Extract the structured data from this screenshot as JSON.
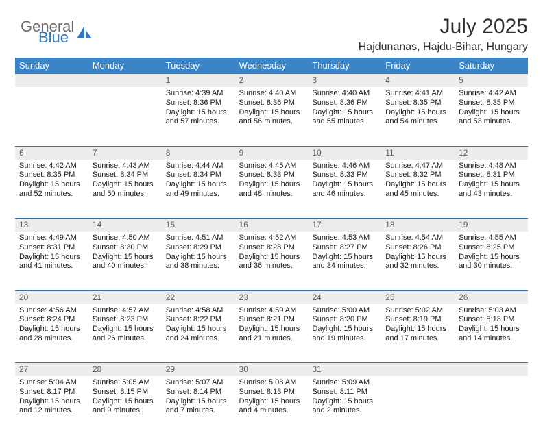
{
  "brand": {
    "general": "General",
    "blue": "Blue"
  },
  "title": "July 2025",
  "location": "Hajdunanas, Hajdu-Bihar, Hungary",
  "colors": {
    "header_bg": "#3b84c8",
    "header_text": "#ffffff",
    "daynum_bg": "#ededed",
    "row_divider": "#3b6fa0",
    "body_text": "#1a1a1a",
    "logo_gray": "#6b6b6b",
    "logo_blue": "#2f78c2"
  },
  "weekdays": [
    "Sunday",
    "Monday",
    "Tuesday",
    "Wednesday",
    "Thursday",
    "Friday",
    "Saturday"
  ],
  "weeks": [
    [
      null,
      null,
      {
        "n": "1",
        "sr": "4:39 AM",
        "ss": "8:36 PM",
        "dl": "15 hours and 57 minutes."
      },
      {
        "n": "2",
        "sr": "4:40 AM",
        "ss": "8:36 PM",
        "dl": "15 hours and 56 minutes."
      },
      {
        "n": "3",
        "sr": "4:40 AM",
        "ss": "8:36 PM",
        "dl": "15 hours and 55 minutes."
      },
      {
        "n": "4",
        "sr": "4:41 AM",
        "ss": "8:35 PM",
        "dl": "15 hours and 54 minutes."
      },
      {
        "n": "5",
        "sr": "4:42 AM",
        "ss": "8:35 PM",
        "dl": "15 hours and 53 minutes."
      }
    ],
    [
      {
        "n": "6",
        "sr": "4:42 AM",
        "ss": "8:35 PM",
        "dl": "15 hours and 52 minutes."
      },
      {
        "n": "7",
        "sr": "4:43 AM",
        "ss": "8:34 PM",
        "dl": "15 hours and 50 minutes."
      },
      {
        "n": "8",
        "sr": "4:44 AM",
        "ss": "8:34 PM",
        "dl": "15 hours and 49 minutes."
      },
      {
        "n": "9",
        "sr": "4:45 AM",
        "ss": "8:33 PM",
        "dl": "15 hours and 48 minutes."
      },
      {
        "n": "10",
        "sr": "4:46 AM",
        "ss": "8:33 PM",
        "dl": "15 hours and 46 minutes."
      },
      {
        "n": "11",
        "sr": "4:47 AM",
        "ss": "8:32 PM",
        "dl": "15 hours and 45 minutes."
      },
      {
        "n": "12",
        "sr": "4:48 AM",
        "ss": "8:31 PM",
        "dl": "15 hours and 43 minutes."
      }
    ],
    [
      {
        "n": "13",
        "sr": "4:49 AM",
        "ss": "8:31 PM",
        "dl": "15 hours and 41 minutes."
      },
      {
        "n": "14",
        "sr": "4:50 AM",
        "ss": "8:30 PM",
        "dl": "15 hours and 40 minutes."
      },
      {
        "n": "15",
        "sr": "4:51 AM",
        "ss": "8:29 PM",
        "dl": "15 hours and 38 minutes."
      },
      {
        "n": "16",
        "sr": "4:52 AM",
        "ss": "8:28 PM",
        "dl": "15 hours and 36 minutes."
      },
      {
        "n": "17",
        "sr": "4:53 AM",
        "ss": "8:27 PM",
        "dl": "15 hours and 34 minutes."
      },
      {
        "n": "18",
        "sr": "4:54 AM",
        "ss": "8:26 PM",
        "dl": "15 hours and 32 minutes."
      },
      {
        "n": "19",
        "sr": "4:55 AM",
        "ss": "8:25 PM",
        "dl": "15 hours and 30 minutes."
      }
    ],
    [
      {
        "n": "20",
        "sr": "4:56 AM",
        "ss": "8:24 PM",
        "dl": "15 hours and 28 minutes."
      },
      {
        "n": "21",
        "sr": "4:57 AM",
        "ss": "8:23 PM",
        "dl": "15 hours and 26 minutes."
      },
      {
        "n": "22",
        "sr": "4:58 AM",
        "ss": "8:22 PM",
        "dl": "15 hours and 24 minutes."
      },
      {
        "n": "23",
        "sr": "4:59 AM",
        "ss": "8:21 PM",
        "dl": "15 hours and 21 minutes."
      },
      {
        "n": "24",
        "sr": "5:00 AM",
        "ss": "8:20 PM",
        "dl": "15 hours and 19 minutes."
      },
      {
        "n": "25",
        "sr": "5:02 AM",
        "ss": "8:19 PM",
        "dl": "15 hours and 17 minutes."
      },
      {
        "n": "26",
        "sr": "5:03 AM",
        "ss": "8:18 PM",
        "dl": "15 hours and 14 minutes."
      }
    ],
    [
      {
        "n": "27",
        "sr": "5:04 AM",
        "ss": "8:17 PM",
        "dl": "15 hours and 12 minutes."
      },
      {
        "n": "28",
        "sr": "5:05 AM",
        "ss": "8:15 PM",
        "dl": "15 hours and 9 minutes."
      },
      {
        "n": "29",
        "sr": "5:07 AM",
        "ss": "8:14 PM",
        "dl": "15 hours and 7 minutes."
      },
      {
        "n": "30",
        "sr": "5:08 AM",
        "ss": "8:13 PM",
        "dl": "15 hours and 4 minutes."
      },
      {
        "n": "31",
        "sr": "5:09 AM",
        "ss": "8:11 PM",
        "dl": "15 hours and 2 minutes."
      },
      null,
      null
    ]
  ],
  "labels": {
    "sunrise": "Sunrise:",
    "sunset": "Sunset:",
    "daylight": "Daylight:"
  }
}
